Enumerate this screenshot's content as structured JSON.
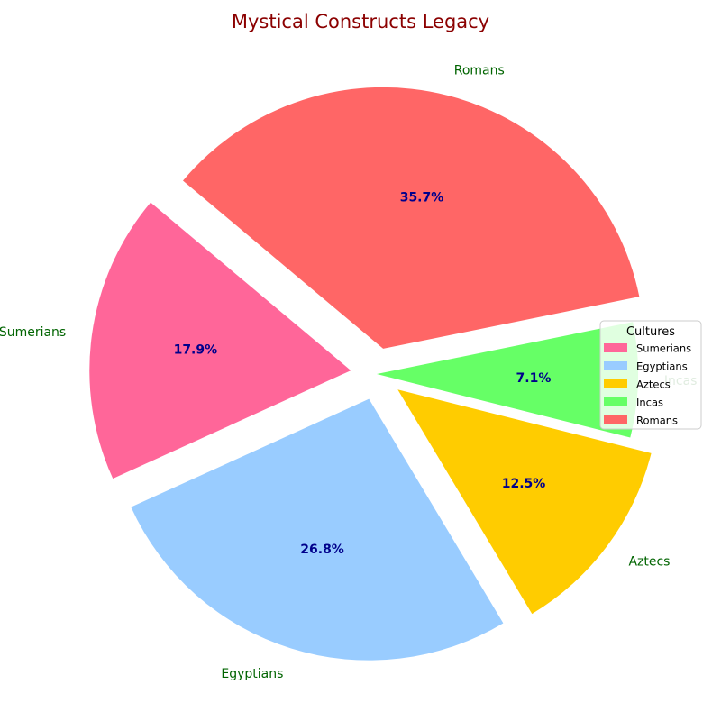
{
  "chart_data": {
    "type": "pie",
    "title": "Mystical Constructs Legacy",
    "categories": [
      "Sumerians",
      "Egyptians",
      "Aztecs",
      "Incas",
      "Romans"
    ],
    "values": [
      17.9,
      26.8,
      12.5,
      7.1,
      35.7
    ],
    "percent_labels": [
      "17.9%",
      "26.8%",
      "12.5%",
      "7.1%",
      "35.7%"
    ],
    "colors": [
      "#ff6699",
      "#99ccff",
      "#ffcc00",
      "#66ff66",
      "#ff6666"
    ],
    "exploded": [
      true,
      true,
      true,
      false,
      true
    ],
    "start_angle_deg": 140,
    "direction": "counterclockwise",
    "legend": {
      "title": "Cultures",
      "placement": "right",
      "entries": [
        "Sumerians",
        "Egyptians",
        "Aztecs",
        "Incas",
        "Romans"
      ]
    },
    "colors_text": {
      "title": "#8b0000",
      "labels": "#006400",
      "percent": "#00008b"
    }
  }
}
